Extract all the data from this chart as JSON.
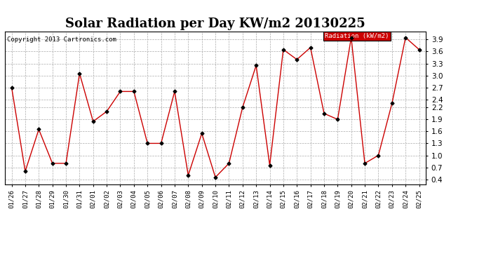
{
  "title": "Solar Radiation per Day KW/m2 20130225",
  "copyright_text": "Copyright 2013 Cartronics.com",
  "legend_label": "Radiation (kW/m2)",
  "dates": [
    "01/26",
    "01/27",
    "01/28",
    "01/29",
    "01/30",
    "01/31",
    "02/01",
    "02/02",
    "02/03",
    "02/04",
    "02/05",
    "02/06",
    "02/07",
    "02/08",
    "02/09",
    "02/10",
    "02/11",
    "02/12",
    "02/13",
    "02/14",
    "02/15",
    "02/16",
    "02/17",
    "02/18",
    "02/19",
    "02/20",
    "02/21",
    "02/22",
    "02/23",
    "02/24",
    "02/25"
  ],
  "values": [
    2.7,
    0.6,
    1.65,
    0.8,
    0.8,
    3.05,
    1.85,
    2.1,
    2.6,
    2.6,
    1.3,
    1.3,
    2.6,
    0.5,
    1.55,
    0.45,
    0.8,
    2.2,
    3.25,
    0.75,
    3.65,
    3.4,
    3.7,
    2.05,
    1.9,
    3.95,
    0.8,
    1.0,
    2.3,
    3.95,
    3.65
  ],
  "line_color": "#cc0000",
  "marker_color": "#000000",
  "bg_color": "#ffffff",
  "grid_color": "#aaaaaa",
  "ylim": [
    0.28,
    4.1
  ],
  "yticks": [
    0.4,
    0.7,
    1.0,
    1.3,
    1.6,
    1.9,
    2.2,
    2.4,
    2.7,
    3.0,
    3.3,
    3.6,
    3.9
  ],
  "title_fontsize": 13,
  "legend_bg": "#cc0000",
  "legend_text_color": "#ffffff"
}
